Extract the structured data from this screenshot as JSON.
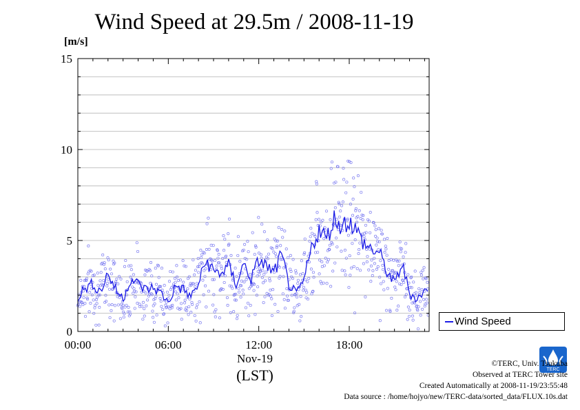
{
  "header": {
    "title": "Wind Speed at 29.5m / 2008-11-19",
    "unit": "[m/s]"
  },
  "legend": {
    "label": "Wind Speed"
  },
  "axis": {
    "date": "Nov-19",
    "timezone": "(LST)"
  },
  "credits": {
    "line1": "©TERC, Univ. Tsukuba",
    "line2": "Observed at TERC Tower site",
    "line3": "Created Automatically at 2008-11-19/23:55:48",
    "line4": "Data source : /home/hojyo/new/TERC-data/sorted_data/FLUX.10s.dat"
  },
  "logo": {
    "text": "TERC",
    "color": "#1a66cc"
  },
  "colors": {
    "line": "#1a1ae6",
    "points": "#7b7bf0",
    "grid": "#b4b4b4"
  },
  "chart_data": {
    "type": "line",
    "title": "Wind Speed at 29.5m / 2008-11-19",
    "ylabel": "[m/s]",
    "xlabel": "Nov-19 (LST)",
    "ylim": [
      0,
      15
    ],
    "xlim": [
      0,
      23.3
    ],
    "x_ticks": [
      {
        "value": 0,
        "label": "00:00"
      },
      {
        "value": 6,
        "label": "06:00"
      },
      {
        "value": 12,
        "label": "12:00"
      },
      {
        "value": 18,
        "label": "18:00"
      }
    ],
    "y_ticks": [
      0,
      5,
      10,
      15
    ],
    "grid": true,
    "legend_position": "right",
    "series": [
      {
        "name": "Wind Speed",
        "style": "line with scatter of 10-s samples",
        "x": [
          0,
          0.5,
          1,
          1.5,
          2,
          2.5,
          3,
          3.5,
          4,
          4.5,
          5,
          5.5,
          6,
          6.5,
          7,
          7.5,
          8,
          8.5,
          9,
          9.5,
          10,
          10.5,
          11,
          11.5,
          12,
          12.5,
          13,
          13.5,
          14,
          14.5,
          15,
          15.5,
          16,
          16.5,
          17,
          17.5,
          18,
          18.5,
          19,
          19.5,
          20,
          20.5,
          21,
          21.5,
          22,
          22.5,
          23
        ],
        "y": [
          1.9,
          2.4,
          2.6,
          2.2,
          3.2,
          2.3,
          1.8,
          2.9,
          2.6,
          2.3,
          2.4,
          2.1,
          1.6,
          2.5,
          2.3,
          1.9,
          2.6,
          3.9,
          3.3,
          3.2,
          3.6,
          2.6,
          3.7,
          2.9,
          3.9,
          3.6,
          3.2,
          4.2,
          2.6,
          2.0,
          2.8,
          4.6,
          5.6,
          5.1,
          6.2,
          5.8,
          6.1,
          5.5,
          4.8,
          4.5,
          4.3,
          3.3,
          2.6,
          3.7,
          2.1,
          1.8,
          2.2
        ]
      }
    ]
  }
}
